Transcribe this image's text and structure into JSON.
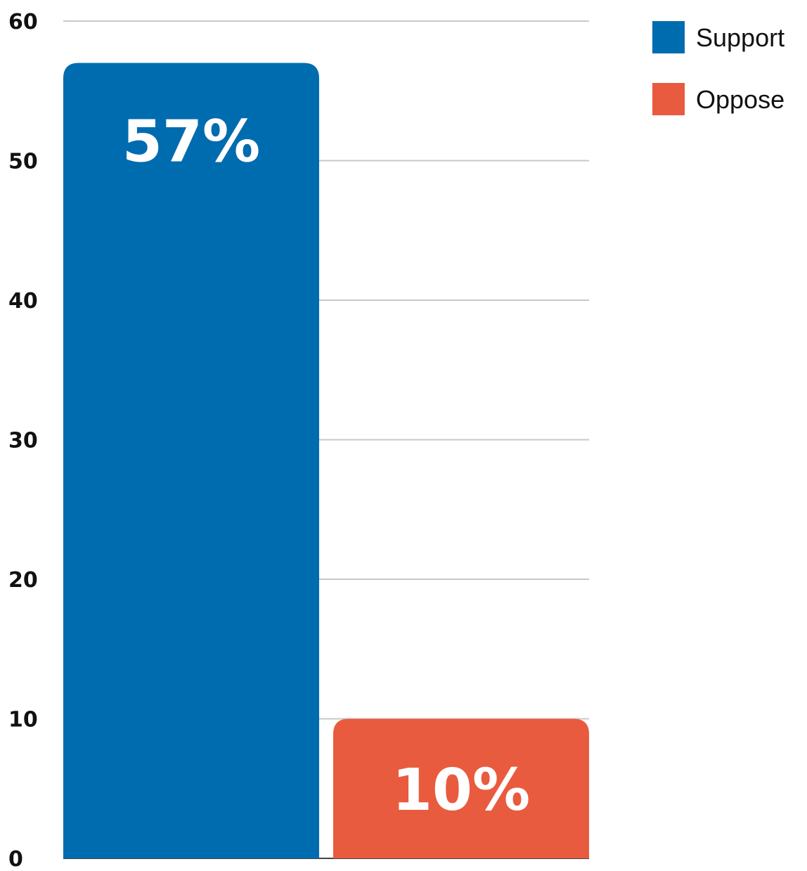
{
  "chart_data": {
    "type": "bar",
    "categories": [
      "Support",
      "Oppose"
    ],
    "values": [
      57,
      10
    ],
    "data_labels": [
      "57%",
      "10%"
    ],
    "colors": [
      "#006CB0",
      "#E95B3E"
    ],
    "ylim": [
      0,
      60
    ],
    "y_ticks": [
      0,
      10,
      20,
      30,
      40,
      50,
      60
    ],
    "y_tick_labels": [
      "0",
      "10",
      "20",
      "30",
      "40",
      "50",
      "60"
    ],
    "grid": true,
    "legend": {
      "position": "top-right",
      "entries": [
        {
          "label": "Support",
          "color": "#006CB0"
        },
        {
          "label": "Oppose",
          "color": "#E95B3E"
        }
      ]
    },
    "title": "",
    "xlabel": "",
    "ylabel": ""
  }
}
